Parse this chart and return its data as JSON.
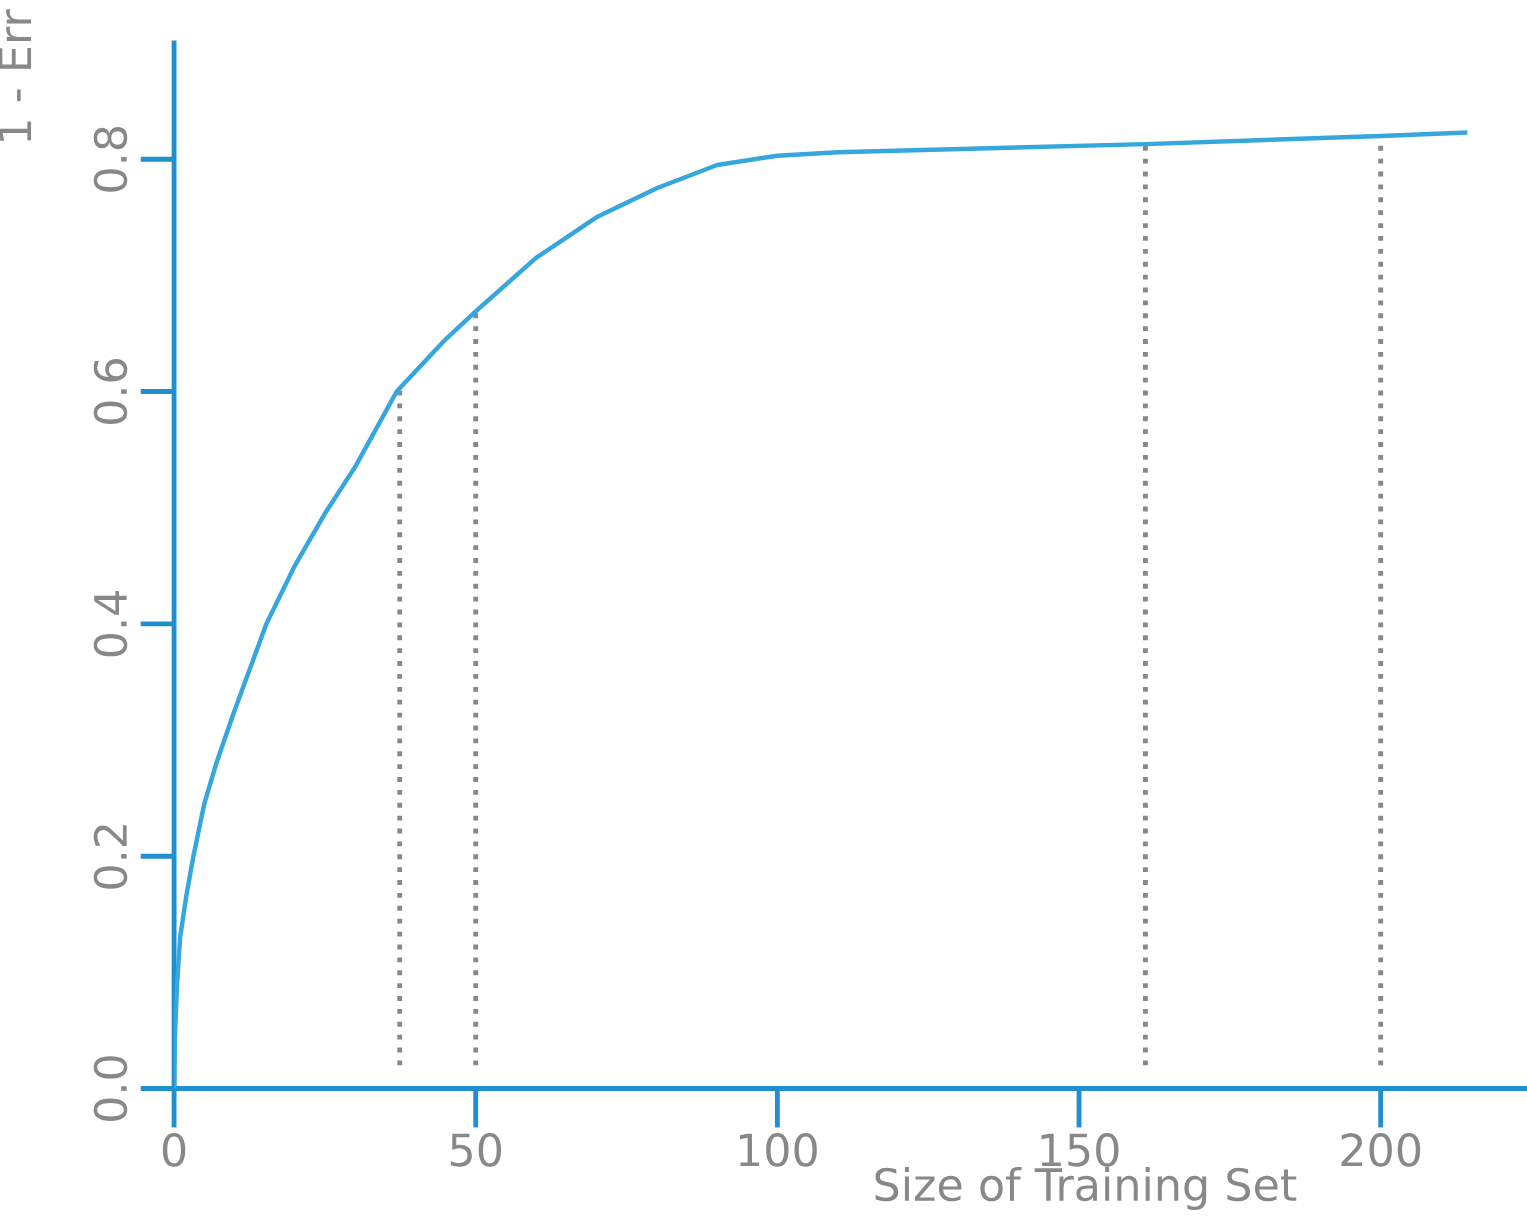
{
  "chart_data": {
    "type": "line",
    "xlabel": "Size of Training Set",
    "ylabel": "1 - Err",
    "xlim": [
      0,
      224
    ],
    "ylim": [
      0,
      0.9
    ],
    "xticks": [
      0,
      50,
      100,
      150,
      200
    ],
    "yticks": [
      {
        "value": 0,
        "label": "0.0"
      },
      0.2,
      0.4,
      0.6,
      0.8
    ],
    "grid": false,
    "legend": false,
    "marker": "none",
    "line_style": "solid",
    "series": [
      {
        "color": "#35a7dc",
        "x": [
          0,
          0.1,
          0.5,
          1,
          2,
          3.2,
          5,
          7,
          10,
          15.3,
          20,
          25,
          30,
          36.9,
          45,
          50,
          60,
          70,
          80,
          90,
          100,
          110,
          161,
          200,
          214
        ],
        "values": [
          0,
          0.04,
          0.09,
          0.13,
          0.165,
          0.2,
          0.245,
          0.28,
          0.325,
          0.4,
          0.45,
          0.495,
          0.535,
          0.6,
          0.645,
          0.669,
          0.715,
          0.75,
          0.775,
          0.795,
          0.803,
          0.806,
          0.813,
          0.82,
          0.823
        ]
      }
    ],
    "ref_lines": [
      {
        "axis": "x",
        "value": 37.4,
        "color": "#888888",
        "line_style": "dotted"
      },
      {
        "axis": "x",
        "value": 50,
        "color": "#888888",
        "line_style": "dotted"
      },
      {
        "axis": "x",
        "value": 161,
        "color": "#888888",
        "line_style": "dotted"
      },
      {
        "axis": "x",
        "value": 200,
        "color": "#888888",
        "line_style": "dotted"
      }
    ]
  }
}
